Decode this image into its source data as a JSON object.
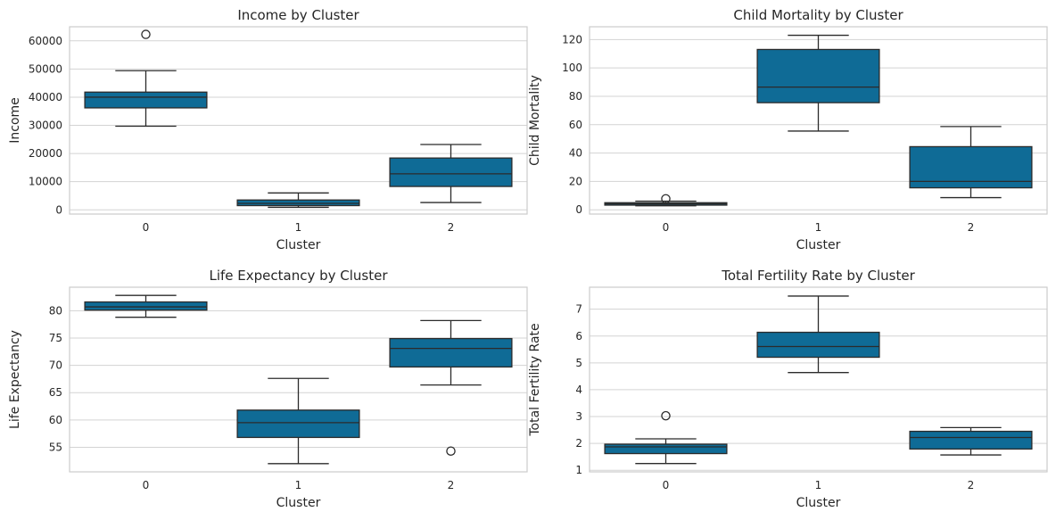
{
  "chart_data": [
    {
      "type": "box",
      "title": "Income by Cluster",
      "xlabel": "Cluster",
      "ylabel": "Income",
      "categories": [
        "0",
        "1",
        "2"
      ],
      "ylim": [
        -1500,
        65000
      ],
      "yticks": [
        0,
        10000,
        20000,
        30000,
        40000,
        50000,
        60000
      ],
      "ytick_labels": [
        "0",
        "10000",
        "20000",
        "30000",
        "40000",
        "50000",
        "60000"
      ],
      "boxes": [
        {
          "whisker_low": 29700,
          "q1": 36200,
          "median": 40000,
          "q3": 41800,
          "whisker_high": 49400,
          "outliers": [
            62300
          ]
        },
        {
          "whisker_low": 900,
          "q1": 1500,
          "median": 2300,
          "q3": 3500,
          "whisker_high": 6000,
          "outliers": []
        },
        {
          "whisker_low": 2600,
          "q1": 8300,
          "median": 12800,
          "q3": 18400,
          "whisker_high": 23200,
          "outliers": []
        }
      ]
    },
    {
      "type": "box",
      "title": "Child Mortality by Cluster",
      "xlabel": "Cluster",
      "ylabel": "Child Mortality",
      "categories": [
        "0",
        "1",
        "2"
      ],
      "ylim": [
        -3,
        129
      ],
      "yticks": [
        0,
        20,
        40,
        60,
        80,
        100,
        120
      ],
      "ytick_labels": [
        "0",
        "20",
        "40",
        "60",
        "80",
        "100",
        "120"
      ],
      "boxes": [
        {
          "whisker_low": 2.8,
          "q1": 3.3,
          "median": 4.2,
          "q3": 5.0,
          "whisker_high": 6.1,
          "outliers": [
            7.8
          ]
        },
        {
          "whisker_low": 55.5,
          "q1": 75.5,
          "median": 86.5,
          "q3": 113.0,
          "whisker_high": 123.0,
          "outliers": []
        },
        {
          "whisker_low": 8.6,
          "q1": 15.5,
          "median": 20.0,
          "q3": 44.5,
          "whisker_high": 58.7,
          "outliers": []
        }
      ]
    },
    {
      "type": "box",
      "title": "Life Expectancy by Cluster",
      "xlabel": "Cluster",
      "ylabel": "Life Expectancy",
      "categories": [
        "0",
        "1",
        "2"
      ],
      "ylim": [
        50.5,
        84.3
      ],
      "yticks": [
        55,
        60,
        65,
        70,
        75,
        80
      ],
      "ytick_labels": [
        "55",
        "60",
        "65",
        "70",
        "75",
        "80"
      ],
      "boxes": [
        {
          "whisker_low": 78.8,
          "q1": 80.1,
          "median": 80.7,
          "q3": 81.6,
          "whisker_high": 82.8,
          "outliers": []
        },
        {
          "whisker_low": 52.0,
          "q1": 56.8,
          "median": 59.5,
          "q3": 61.8,
          "whisker_high": 67.6,
          "outliers": []
        },
        {
          "whisker_low": 66.4,
          "q1": 69.7,
          "median": 73.1,
          "q3": 74.9,
          "whisker_high": 78.2,
          "outliers": [
            54.3
          ]
        }
      ]
    },
    {
      "type": "box",
      "title": "Total Fertility Rate by Cluster",
      "xlabel": "Cluster",
      "ylabel": "Total Fertility Rate",
      "categories": [
        "0",
        "1",
        "2"
      ],
      "ylim": [
        0.94,
        7.82
      ],
      "yticks": [
        1,
        2,
        3,
        4,
        5,
        6,
        7
      ],
      "ytick_labels": [
        "1",
        "2",
        "3",
        "4",
        "5",
        "6",
        "7"
      ],
      "boxes": [
        {
          "whisker_low": 1.25,
          "q1": 1.62,
          "median": 1.87,
          "q3": 1.97,
          "whisker_high": 2.17,
          "outliers": [
            3.03
          ]
        },
        {
          "whisker_low": 4.64,
          "q1": 5.21,
          "median": 5.61,
          "q3": 6.14,
          "whisker_high": 7.49,
          "outliers": []
        },
        {
          "whisker_low": 1.57,
          "q1": 1.79,
          "median": 2.22,
          "q3": 2.45,
          "whisker_high": 2.59,
          "outliers": []
        }
      ]
    }
  ],
  "style": {
    "box_fill": "#0f6b96",
    "line_color": "#2b2b2b",
    "grid_color": "#d3d3d3",
    "spine_color": "#cccccc"
  }
}
